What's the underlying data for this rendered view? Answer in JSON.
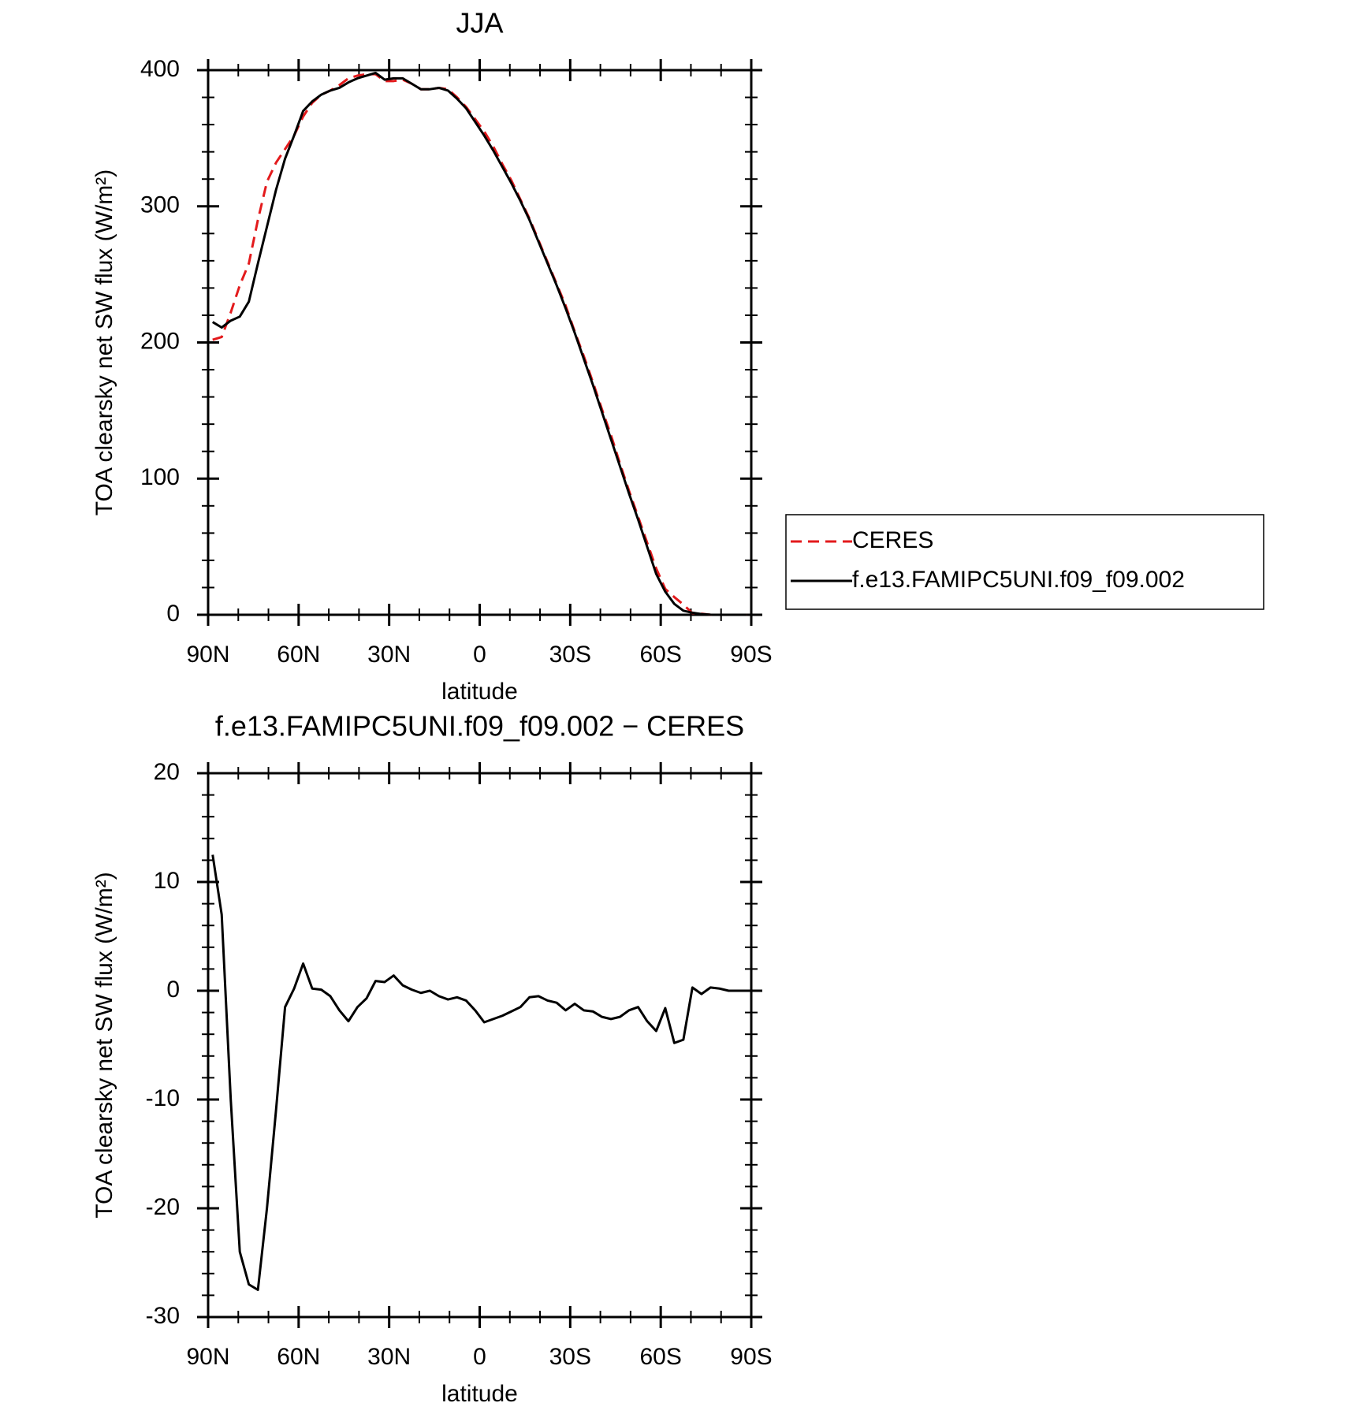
{
  "chart_data": [
    {
      "type": "line",
      "title": "JJA",
      "xlabel": "latitude",
      "ylabel": "TOA clearsky net SW flux (W/m²)",
      "x": [
        88.5,
        85.5,
        82.5,
        79.5,
        76.5,
        73.5,
        70.5,
        67.5,
        64.5,
        61.5,
        58.5,
        55.5,
        52.5,
        49.5,
        46.5,
        43.5,
        40.5,
        37.5,
        34.5,
        31.5,
        28.5,
        25.5,
        22.5,
        19.5,
        16.5,
        13.5,
        10.5,
        7.5,
        4.5,
        1.5,
        -1.5,
        -4.5,
        -7.5,
        -10.5,
        -13.5,
        -16.5,
        -19.5,
        -22.5,
        -25.5,
        -28.5,
        -31.5,
        -34.5,
        -37.5,
        -40.5,
        -43.5,
        -46.5,
        -49.5,
        -52.5,
        -55.5,
        -58.5,
        -61.5,
        -64.5,
        -67.5,
        -70.5,
        -73.5,
        -76.5,
        -79.5,
        -82.5,
        -85.5,
        -88.5
      ],
      "series": [
        {
          "name": "CERES",
          "color": "#e31a1c",
          "style": "dashed",
          "values": [
            202,
            204,
            222,
            242,
            258,
            290,
            318,
            332,
            342,
            352,
            366,
            376,
            382,
            385,
            389,
            394,
            396,
            397,
            397,
            392,
            392,
            393,
            390,
            386,
            386,
            387,
            386,
            380,
            373,
            364,
            355,
            344,
            331,
            319,
            305,
            291,
            275,
            259,
            243,
            227,
            208,
            190,
            171,
            151,
            132,
            111,
            91,
            72,
            53,
            34,
            19,
            13,
            7.5,
            1.2,
            0.8,
            0,
            0,
            0,
            0,
            0
          ]
        },
        {
          "name": "f.e13.FAMIPC5UNI.f09_f09.002",
          "color": "#000000",
          "style": "solid",
          "values": [
            215,
            211,
            216,
            219,
            230,
            258,
            285,
            312,
            335,
            352,
            370,
            377,
            382,
            385,
            387,
            391,
            394,
            396,
            398,
            393,
            394,
            394,
            390,
            386,
            386,
            387,
            385,
            379,
            372,
            362,
            352,
            341,
            329,
            317,
            304,
            290,
            274,
            258,
            242,
            225,
            207,
            188,
            169,
            149,
            129,
            109,
            89,
            70,
            50,
            30,
            17,
            8,
            3,
            1.5,
            0.5,
            0.1,
            0,
            0,
            0,
            0
          ]
        }
      ],
      "xlim": [
        90,
        -90
      ],
      "xticks": [
        {
          "value": 90,
          "label": "90N"
        },
        {
          "value": 60,
          "label": "60N"
        },
        {
          "value": 30,
          "label": "30N"
        },
        0,
        {
          "value": -30,
          "label": "30S"
        },
        {
          "value": -60,
          "label": "60S"
        },
        {
          "value": -90,
          "label": "90S"
        }
      ],
      "ylim": [
        0,
        400
      ],
      "yticks": [
        0,
        100,
        200,
        300,
        400
      ],
      "x_minor_per_major": 2,
      "y_minor_per_major": 4,
      "legend": "outside right"
    },
    {
      "type": "line",
      "title": "f.e13.FAMIPC5UNI.f09_f09.002 − CERES",
      "xlabel": "latitude",
      "ylabel": "TOA clearsky net SW flux (W/m²)",
      "x": [
        88.5,
        85.5,
        82.5,
        79.5,
        76.5,
        73.5,
        70.5,
        67.5,
        64.5,
        61.5,
        58.5,
        55.5,
        52.5,
        49.5,
        46.5,
        43.5,
        40.5,
        37.5,
        34.5,
        31.5,
        28.5,
        25.5,
        22.5,
        19.5,
        16.5,
        13.5,
        10.5,
        7.5,
        4.5,
        1.5,
        -1.5,
        -4.5,
        -7.5,
        -10.5,
        -13.5,
        -16.5,
        -19.5,
        -22.5,
        -25.5,
        -28.5,
        -31.5,
        -34.5,
        -37.5,
        -40.5,
        -43.5,
        -46.5,
        -49.5,
        -52.5,
        -55.5,
        -58.5,
        -61.5,
        -64.5,
        -67.5,
        -70.5,
        -73.5,
        -76.5,
        -79.5,
        -82.5,
        -85.5,
        -88.5
      ],
      "series": [
        {
          "color": "#000000",
          "style": "solid",
          "values": [
            12.5,
            7,
            -10,
            -24,
            -27,
            -27.5,
            -20,
            -11,
            -1.5,
            0.2,
            2.5,
            0.2,
            0.1,
            -0.5,
            -1.8,
            -2.8,
            -1.5,
            -0.7,
            0.9,
            0.8,
            1.4,
            0.5,
            0.1,
            -0.2,
            0,
            -0.5,
            -0.8,
            -0.6,
            -0.9,
            -1.8,
            -2.9,
            -2.6,
            -2.3,
            -1.9,
            -1.5,
            -0.6,
            -0.5,
            -0.9,
            -1.1,
            -1.8,
            -1.2,
            -1.8,
            -1.9,
            -2.4,
            -2.6,
            -2.4,
            -1.8,
            -1.5,
            -2.8,
            -3.7,
            -1.6,
            -4.8,
            -4.5,
            0.3,
            -0.3,
            0.3,
            0.2,
            0,
            0,
            0
          ]
        }
      ],
      "xlim": [
        90,
        -90
      ],
      "xticks": [
        {
          "value": 90,
          "label": "90N"
        },
        {
          "value": 60,
          "label": "60N"
        },
        {
          "value": 30,
          "label": "30N"
        },
        0,
        {
          "value": -30,
          "label": "30S"
        },
        {
          "value": -60,
          "label": "60S"
        },
        {
          "value": -90,
          "label": "90S"
        }
      ],
      "ylim": [
        -30,
        20
      ],
      "yticks": [
        -30,
        -20,
        -10,
        0,
        10,
        20
      ],
      "x_minor_per_major": 2,
      "y_minor_per_major": 4,
      "legend": "none"
    }
  ]
}
